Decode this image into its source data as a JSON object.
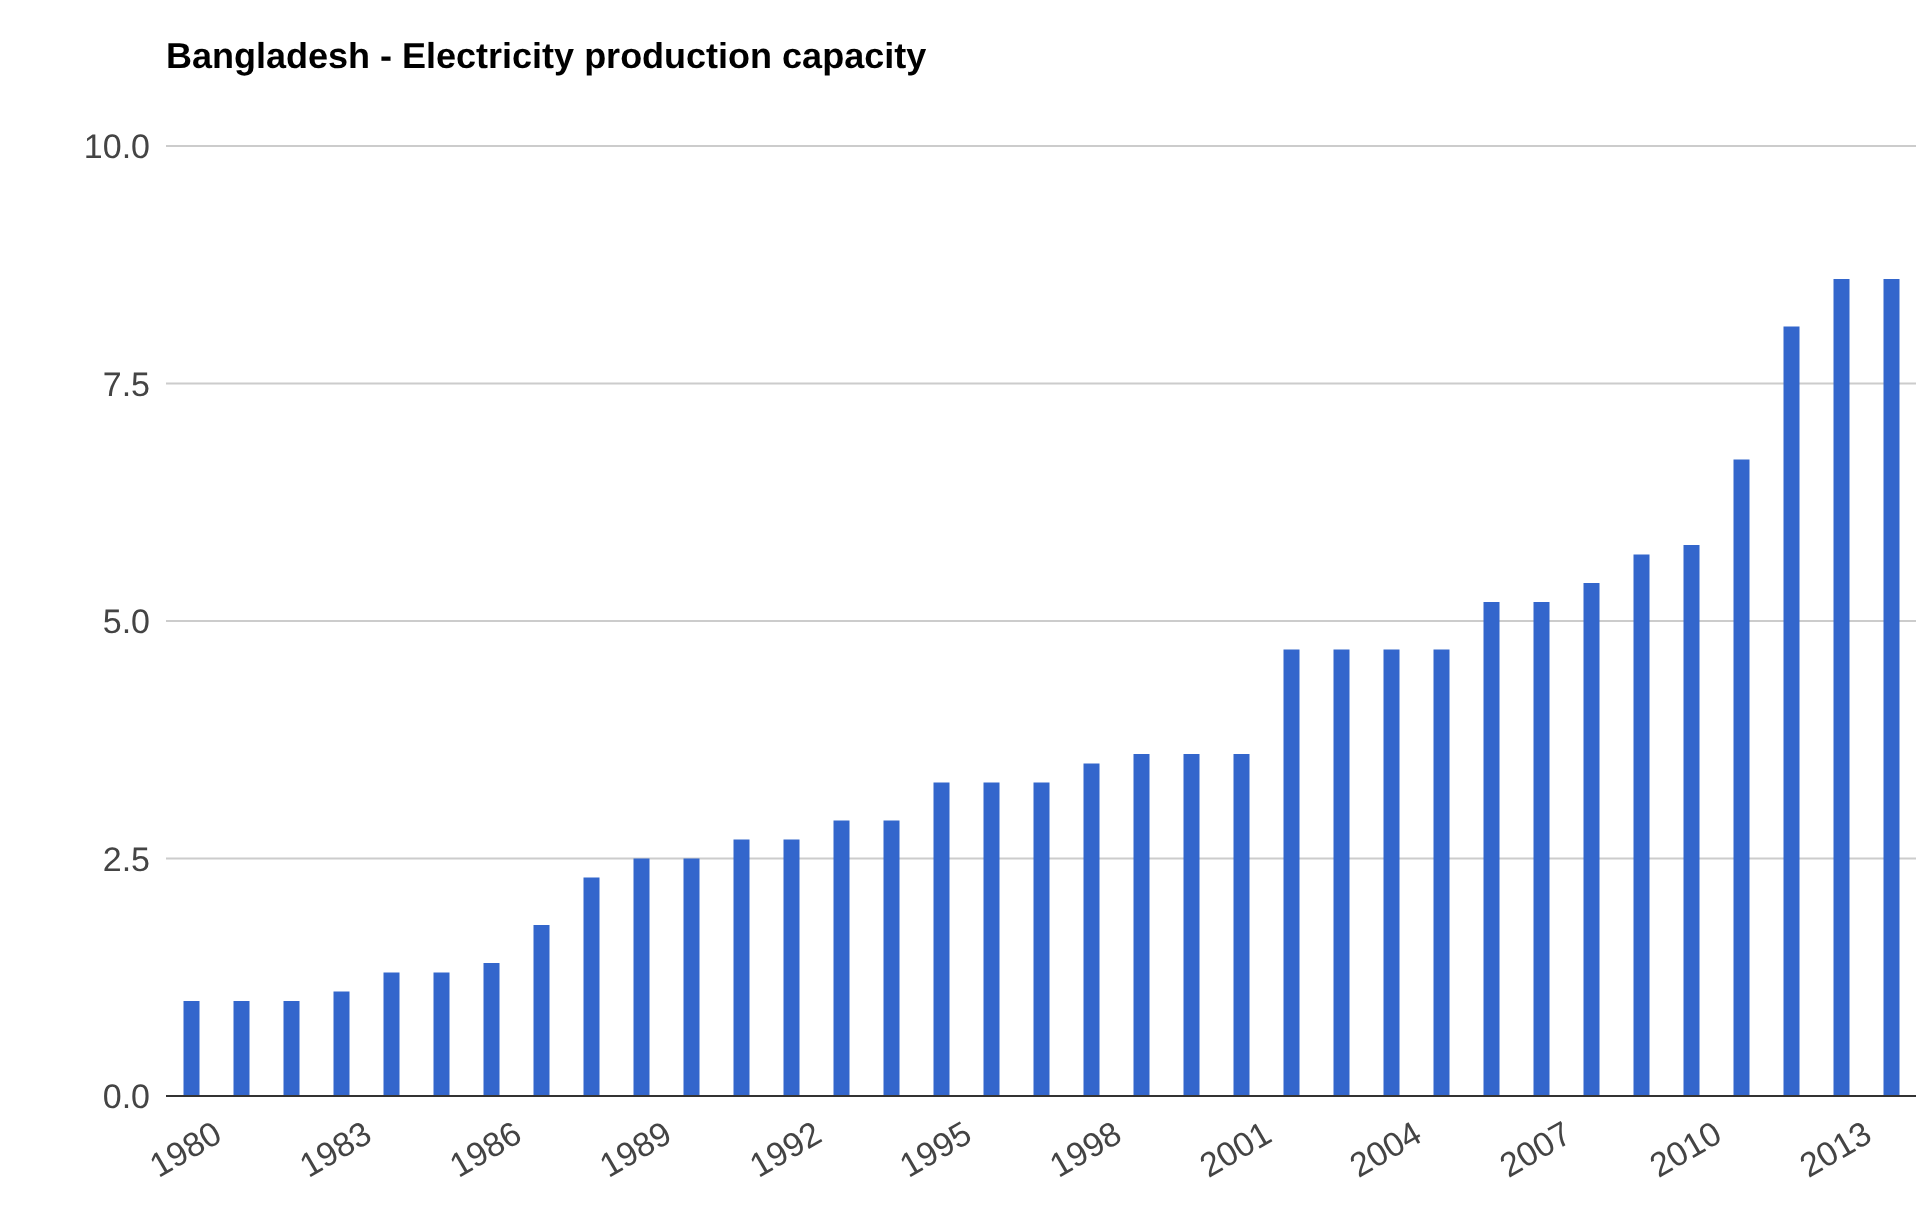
{
  "chart_data": {
    "type": "bar",
    "title": "Bangladesh - Electricity production capacity",
    "categories": [
      "1980",
      null,
      null,
      "1983",
      null,
      null,
      "1986",
      null,
      null,
      "1989",
      null,
      null,
      "1992",
      null,
      null,
      "1995",
      null,
      null,
      "1998",
      null,
      null,
      "2001",
      null,
      null,
      "2004",
      null,
      null,
      "2007",
      null,
      null,
      "2010",
      null,
      null,
      "2013",
      null
    ],
    "values": [
      1.0,
      1.0,
      1.0,
      1.1,
      1.3,
      1.3,
      1.4,
      1.8,
      2.3,
      2.5,
      2.5,
      2.7,
      2.7,
      2.9,
      2.9,
      3.3,
      3.3,
      3.3,
      3.5,
      3.6,
      3.6,
      3.6,
      4.7,
      4.7,
      4.7,
      4.7,
      5.2,
      5.2,
      5.4,
      5.7,
      5.8,
      6.7,
      8.1,
      8.6,
      8.6
    ],
    "color": "#3366cc",
    "ylim": [
      0,
      10
    ],
    "yticks": [
      {
        "value": 0,
        "label": "0.0"
      },
      {
        "value": 2.5,
        "label": "2.5"
      },
      {
        "value": 5,
        "label": "5.0"
      },
      {
        "value": 7.5,
        "label": "7.5"
      },
      {
        "value": 10,
        "label": "10.0"
      }
    ],
    "grid": "y"
  }
}
